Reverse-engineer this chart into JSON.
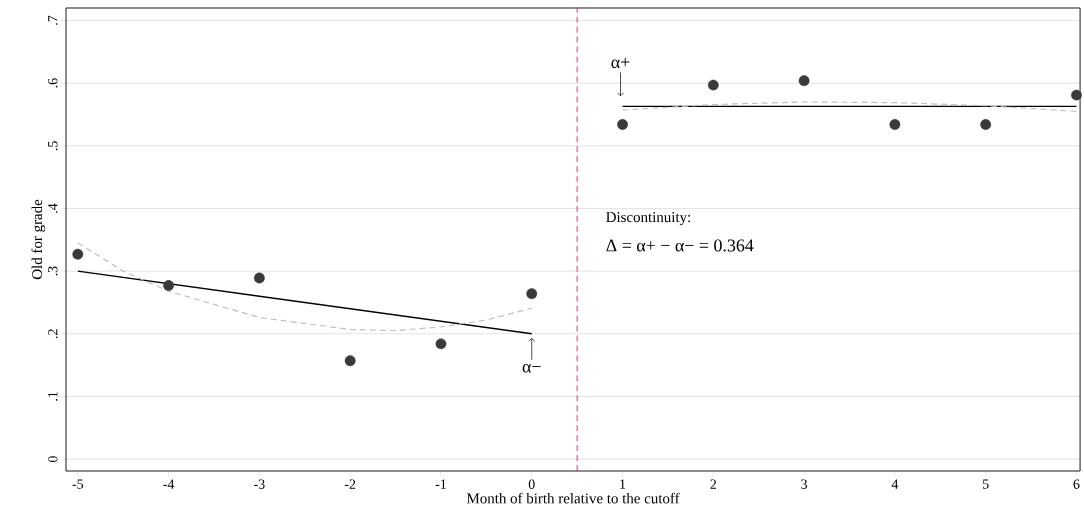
{
  "chart_data": {
    "type": "scatter",
    "xlabel": "Month of birth relative to the cutoff",
    "ylabel": "Old for grade",
    "xlim": [
      -5.13,
      6.04
    ],
    "ylim": [
      -0.019,
      0.72
    ],
    "xticks": [
      -5,
      -4,
      -3,
      -2,
      -1,
      0,
      1,
      2,
      3,
      4,
      5,
      6
    ],
    "yticks": [
      {
        "value": 0,
        "label": "0"
      },
      {
        "value": 0.1,
        "label": ".1"
      },
      {
        "value": 0.2,
        "label": ".2"
      },
      {
        "value": 0.3,
        "label": ".3"
      },
      {
        "value": 0.4,
        "label": ".4"
      },
      {
        "value": 0.5,
        "label": ".5"
      },
      {
        "value": 0.6,
        "label": ".6"
      },
      {
        "value": 0.7,
        "label": ".7"
      }
    ],
    "grid": "y",
    "series": [
      {
        "marker": "circle",
        "color": "#3a3a3a",
        "x": [
          -5,
          -4,
          -3,
          -2,
          -1,
          0,
          1,
          2,
          3,
          4,
          5,
          6
        ],
        "values": [
          0.327,
          0.277,
          0.289,
          0.157,
          0.184,
          0.264,
          0.534,
          0.597,
          0.604,
          0.534,
          0.534,
          0.581
        ]
      },
      {
        "type": "line",
        "marker": "none",
        "color": "#000000",
        "line_style": "solid",
        "x": [
          -5,
          0
        ],
        "values": [
          0.3,
          0.2
        ]
      },
      {
        "type": "line",
        "marker": "none",
        "color": "#000000",
        "line_style": "solid",
        "x": [
          1,
          6
        ],
        "values": [
          0.563,
          0.563
        ]
      },
      {
        "type": "line",
        "marker": "none",
        "color": "#c0c0c0",
        "line_style": "dashed",
        "x": [
          -5,
          -4.5,
          -4,
          -3,
          -2,
          -1.5,
          -1,
          -0.5,
          0
        ],
        "values": [
          0.345,
          0.3,
          0.268,
          0.226,
          0.207,
          0.205,
          0.211,
          0.222,
          0.241
        ]
      },
      {
        "type": "line",
        "marker": "none",
        "color": "#c0c0c0",
        "line_style": "dashed",
        "x": [
          1,
          2,
          3,
          4,
          5,
          6
        ],
        "values": [
          0.557,
          0.566,
          0.57,
          0.569,
          0.564,
          0.555
        ]
      }
    ],
    "ref_lines": [
      {
        "axis": "x",
        "value": 0.5,
        "color": "#d6264f",
        "line_style": "dashed"
      }
    ],
    "annotations": [
      {
        "text": "α+",
        "x": 1,
        "y": 0.563
      },
      {
        "text": "α−",
        "x": 0,
        "y": 0.2
      },
      "Discontinuity:",
      "Δ = α+ − α− = 0.364"
    ]
  }
}
